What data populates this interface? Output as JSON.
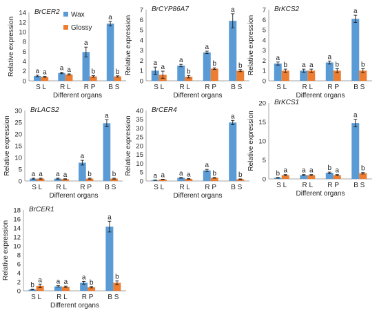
{
  "colors": {
    "wax": "#5b9bd5",
    "glossy": "#ed7d31",
    "axis": "#a6a6a6",
    "error": "#1a1a1a"
  },
  "legend": [
    {
      "name": "Wax",
      "color": "#5b9bd5"
    },
    {
      "name": "Glossy",
      "color": "#ed7d31"
    }
  ],
  "chart_data": [
    {
      "type": "bar",
      "title": "BrCER2",
      "categories": [
        "S L",
        "R L",
        "R P",
        "B S"
      ],
      "xlabel": "Different organs",
      "ylabel": "Relative expression",
      "ylim": [
        0,
        14
      ],
      "ticks": [
        0,
        2,
        4,
        6,
        8,
        10,
        12,
        14
      ],
      "series": [
        {
          "name": "Wax",
          "values": [
            1.0,
            1.6,
            5.9,
            11.7
          ],
          "errors": [
            0.15,
            0.15,
            1.0,
            0.45
          ],
          "letters": [
            "a",
            "a",
            "a",
            "a"
          ]
        },
        {
          "name": "Glossy",
          "values": [
            0.8,
            1.3,
            0.9,
            0.9
          ],
          "errors": [
            0.1,
            0.12,
            0.15,
            0.12
          ],
          "letters": [
            "a",
            "a",
            "b",
            "b"
          ]
        }
      ]
    },
    {
      "type": "bar",
      "title": "BrCYP86A7",
      "categories": [
        "S L",
        "R L",
        "R P",
        "B S"
      ],
      "xlabel": "Different organs",
      "ylabel": "Relative expression",
      "ylim": [
        0,
        7
      ],
      "ticks": [
        0,
        1,
        2,
        3,
        4,
        5,
        6,
        7
      ],
      "series": [
        {
          "name": "Wax",
          "values": [
            1.0,
            1.5,
            2.8,
            5.9
          ],
          "errors": [
            0.35,
            0.12,
            0.12,
            0.7
          ],
          "letters": [
            "a",
            "a",
            "a",
            "a"
          ]
        },
        {
          "name": "Glossy",
          "values": [
            0.6,
            0.4,
            1.2,
            1.0
          ],
          "errors": [
            0.35,
            0.12,
            0.08,
            0.1
          ],
          "letters": [
            "a",
            "b",
            "b",
            "b"
          ]
        }
      ]
    },
    {
      "type": "bar",
      "title": "BrKCS2",
      "categories": [
        "S L",
        "R L",
        "R P",
        "B S"
      ],
      "xlabel": "Different organs",
      "ylabel": "Relative expression",
      "ylim": [
        0,
        7
      ],
      "ticks": [
        0,
        1,
        2,
        3,
        4,
        5,
        6,
        7
      ],
      "series": [
        {
          "name": "Wax",
          "values": [
            1.7,
            1.0,
            1.8,
            6.1
          ],
          "errors": [
            0.15,
            0.15,
            0.15,
            0.35
          ],
          "letters": [
            "a",
            "a",
            "a",
            "a"
          ]
        },
        {
          "name": "Glossy",
          "values": [
            1.0,
            1.0,
            1.0,
            1.0
          ],
          "errors": [
            0.15,
            0.15,
            0.2,
            0.2
          ],
          "letters": [
            "b",
            "a",
            "b",
            "b"
          ]
        }
      ]
    },
    {
      "type": "bar",
      "title": "BrLACS2",
      "categories": [
        "S L",
        "R L",
        "R P",
        "B S"
      ],
      "xlabel": "Different organs",
      "ylabel": "Relative expression",
      "ylim": [
        0,
        30
      ],
      "ticks": [
        0,
        5,
        10,
        15,
        20,
        25,
        30
      ],
      "series": [
        {
          "name": "Wax",
          "values": [
            1.0,
            1.0,
            7.8,
            24.6
          ],
          "errors": [
            0.2,
            0.2,
            1.0,
            1.5
          ],
          "letters": [
            "a",
            "a",
            "a",
            "a"
          ]
        },
        {
          "name": "Glossy",
          "values": [
            1.0,
            0.8,
            1.0,
            1.0
          ],
          "errors": [
            0.2,
            0.15,
            0.2,
            0.2
          ],
          "letters": [
            "a",
            "a",
            "b",
            "b"
          ]
        }
      ]
    },
    {
      "type": "bar",
      "title": "BrCER4",
      "categories": [
        "S L",
        "R L",
        "R P",
        "B S"
      ],
      "xlabel": "Different organs",
      "ylabel": "Relative expression",
      "ylim": [
        0,
        40
      ],
      "ticks": [
        0,
        5,
        10,
        15,
        20,
        25,
        30,
        35,
        40
      ],
      "series": [
        {
          "name": "Wax",
          "values": [
            0.5,
            1.8,
            6.0,
            33.2
          ],
          "errors": [
            0.1,
            0.2,
            0.6,
            1.2
          ],
          "letters": [
            "a",
            "a",
            "a",
            "a"
          ]
        },
        {
          "name": "Glossy",
          "values": [
            0.9,
            1.2,
            1.8,
            1.0
          ],
          "errors": [
            0.1,
            0.15,
            0.2,
            0.2
          ],
          "letters": [
            "a",
            "a",
            "b",
            "b"
          ]
        }
      ]
    },
    {
      "type": "bar",
      "title": "BrKCS1",
      "categories": [
        "S L",
        "R L",
        "R P",
        "B S"
      ],
      "xlabel": "Different organs",
      "ylabel": "Relative expression",
      "ylim": [
        0,
        20
      ],
      "ticks": [
        0,
        5,
        10,
        15,
        20
      ],
      "series": [
        {
          "name": "Wax",
          "values": [
            0.3,
            1.0,
            1.6,
            14.7
          ],
          "errors": [
            0.1,
            0.15,
            0.2,
            1.0
          ],
          "letters": [
            "b",
            "a",
            "b",
            "a"
          ]
        },
        {
          "name": "Glossy",
          "values": [
            1.0,
            1.0,
            1.0,
            1.5
          ],
          "errors": [
            0.15,
            0.15,
            0.15,
            0.2
          ],
          "letters": [
            "a",
            "a",
            "a",
            "b"
          ]
        }
      ]
    },
    {
      "type": "bar",
      "title": "BrCER1",
      "categories": [
        "S L",
        "R L",
        "R P",
        "B S"
      ],
      "xlabel": "Different organs",
      "ylabel": "Relative expression",
      "ylim": [
        0,
        18
      ],
      "ticks": [
        0,
        2,
        4,
        6,
        8,
        10,
        12,
        14,
        16,
        18
      ],
      "series": [
        {
          "name": "Wax",
          "values": [
            0.3,
            1.0,
            1.8,
            14.3
          ],
          "errors": [
            0.1,
            0.15,
            0.3,
            1.2
          ],
          "letters": [
            "b",
            "a",
            "a",
            "a"
          ]
        },
        {
          "name": "Glossy",
          "values": [
            1.1,
            0.9,
            0.8,
            1.8
          ],
          "errors": [
            0.4,
            0.15,
            0.15,
            0.4
          ],
          "letters": [
            "a",
            "a",
            "b",
            "b"
          ]
        }
      ]
    }
  ]
}
